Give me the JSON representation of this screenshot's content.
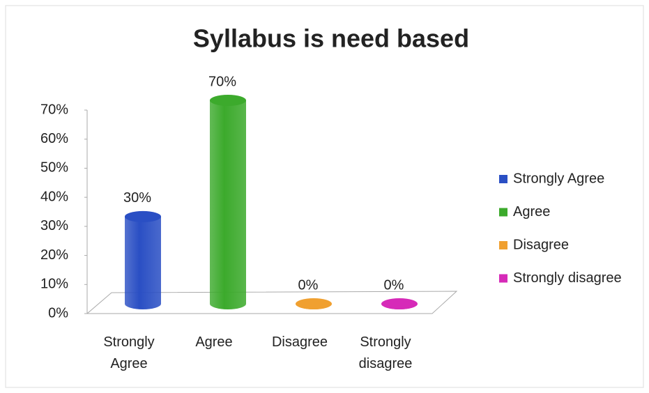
{
  "chart_data": {
    "type": "bar3d",
    "title": "Syllabus is need based",
    "categories": [
      "Strongly Agree",
      "Agree",
      "Disagree",
      "Strongly disagree"
    ],
    "values": [
      30,
      70,
      0,
      0
    ],
    "value_labels": [
      "30%",
      "70%",
      "0%",
      "0%"
    ],
    "colors": [
      "#2a4fc4",
      "#3caa2c",
      "#f0a030",
      "#d62ab8"
    ],
    "ylim": [
      0,
      70
    ],
    "yticks": [
      {
        "value": 0,
        "label": "0%"
      },
      {
        "value": 10,
        "label": "10%"
      },
      {
        "value": 20,
        "label": "20%"
      },
      {
        "value": 30,
        "label": "30%"
      },
      {
        "value": 40,
        "label": "40%"
      },
      {
        "value": 50,
        "label": "50%"
      },
      {
        "value": 60,
        "label": "60%"
      },
      {
        "value": 70,
        "label": "70%"
      }
    ],
    "legend": "right"
  }
}
